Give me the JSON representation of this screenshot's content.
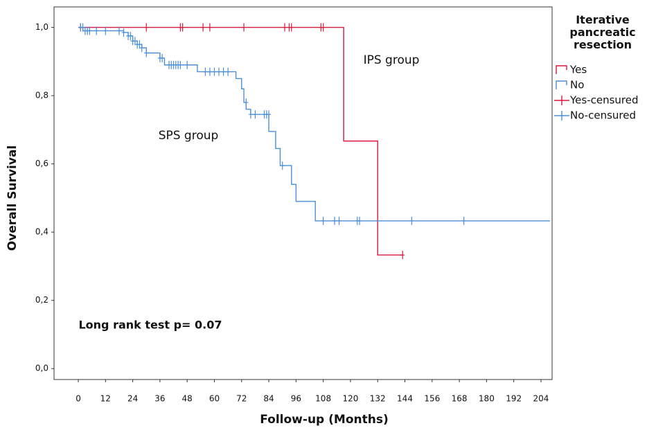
{
  "chart_data": {
    "type": "step",
    "x_label": "Follow-up (Months)",
    "y_label": "Overall Survival",
    "legend_title": "Iterative pancreatic resection",
    "annotations": [
      "IPS group",
      "SPS group",
      "Long rank test p= 0.07"
    ],
    "xlim": [
      -10.7,
      208.9
    ],
    "ylim": [
      -0.032,
      1.06
    ],
    "xticks": [
      0,
      12,
      24,
      36,
      48,
      60,
      72,
      84,
      96,
      108,
      120,
      132,
      144,
      156,
      168,
      180,
      192,
      204
    ],
    "yticks": [
      {
        "value": 0,
        "label": "0,0"
      },
      {
        "value": 0.2,
        "label": "0,2"
      },
      {
        "value": 0.4,
        "label": "0,4"
      },
      {
        "value": 0.6,
        "label": "0,6"
      },
      {
        "value": 0.8,
        "label": "0,8"
      },
      {
        "value": 1.0,
        "label": "1,0"
      }
    ],
    "series": [
      {
        "name": "Yes",
        "color": "#d9173c",
        "marker": "step",
        "x": [
          0,
          117,
          132,
          143
        ],
        "values": [
          1.0,
          0.667,
          0.333,
          0.333
        ]
      },
      {
        "name": "No",
        "color": "#4a8fd8",
        "marker": "step",
        "x": [
          0,
          2,
          20,
          22,
          24,
          26,
          28,
          30,
          36,
          38,
          52.5,
          69.5,
          72,
          73,
          74,
          76,
          84,
          87,
          89,
          94,
          96,
          104.5,
          208
        ],
        "values": [
          1.0,
          0.99,
          0.985,
          0.975,
          0.96,
          0.95,
          0.94,
          0.925,
          0.91,
          0.89,
          0.87,
          0.85,
          0.82,
          0.78,
          0.76,
          0.745,
          0.695,
          0.645,
          0.595,
          0.54,
          0.49,
          0.433,
          0.433
        ]
      },
      {
        "name": "Yes-censured",
        "color": "#d9173c",
        "marker": "+",
        "x": [
          1,
          30,
          45,
          46,
          55,
          58,
          73,
          91,
          93,
          94,
          107,
          108,
          143
        ],
        "values": [
          1.0,
          1.0,
          1.0,
          1.0,
          1.0,
          1.0,
          1.0,
          1.0,
          1.0,
          1.0,
          1.0,
          1.0,
          0.333
        ]
      },
      {
        "name": "No-censured",
        "color": "#4a8fd8",
        "marker": "+",
        "x": [
          1,
          2,
          3,
          4,
          5,
          8,
          12,
          18,
          20,
          22,
          23,
          24,
          25,
          26,
          27,
          28,
          30,
          36,
          37,
          40,
          41,
          42,
          43,
          44,
          45,
          48,
          56,
          58,
          60,
          62,
          64,
          66,
          74,
          76,
          78,
          82,
          83,
          84,
          90,
          108,
          113,
          115,
          123,
          124,
          147,
          170
        ],
        "values": [
          1.0,
          1.0,
          0.99,
          0.99,
          0.99,
          0.99,
          0.99,
          0.99,
          0.985,
          0.975,
          0.975,
          0.96,
          0.96,
          0.95,
          0.95,
          0.94,
          0.925,
          0.91,
          0.91,
          0.89,
          0.89,
          0.89,
          0.89,
          0.89,
          0.89,
          0.89,
          0.87,
          0.87,
          0.87,
          0.87,
          0.87,
          0.87,
          0.78,
          0.745,
          0.745,
          0.745,
          0.745,
          0.745,
          0.595,
          0.433,
          0.433,
          0.433,
          0.433,
          0.433,
          0.433,
          0.433
        ]
      }
    ]
  }
}
